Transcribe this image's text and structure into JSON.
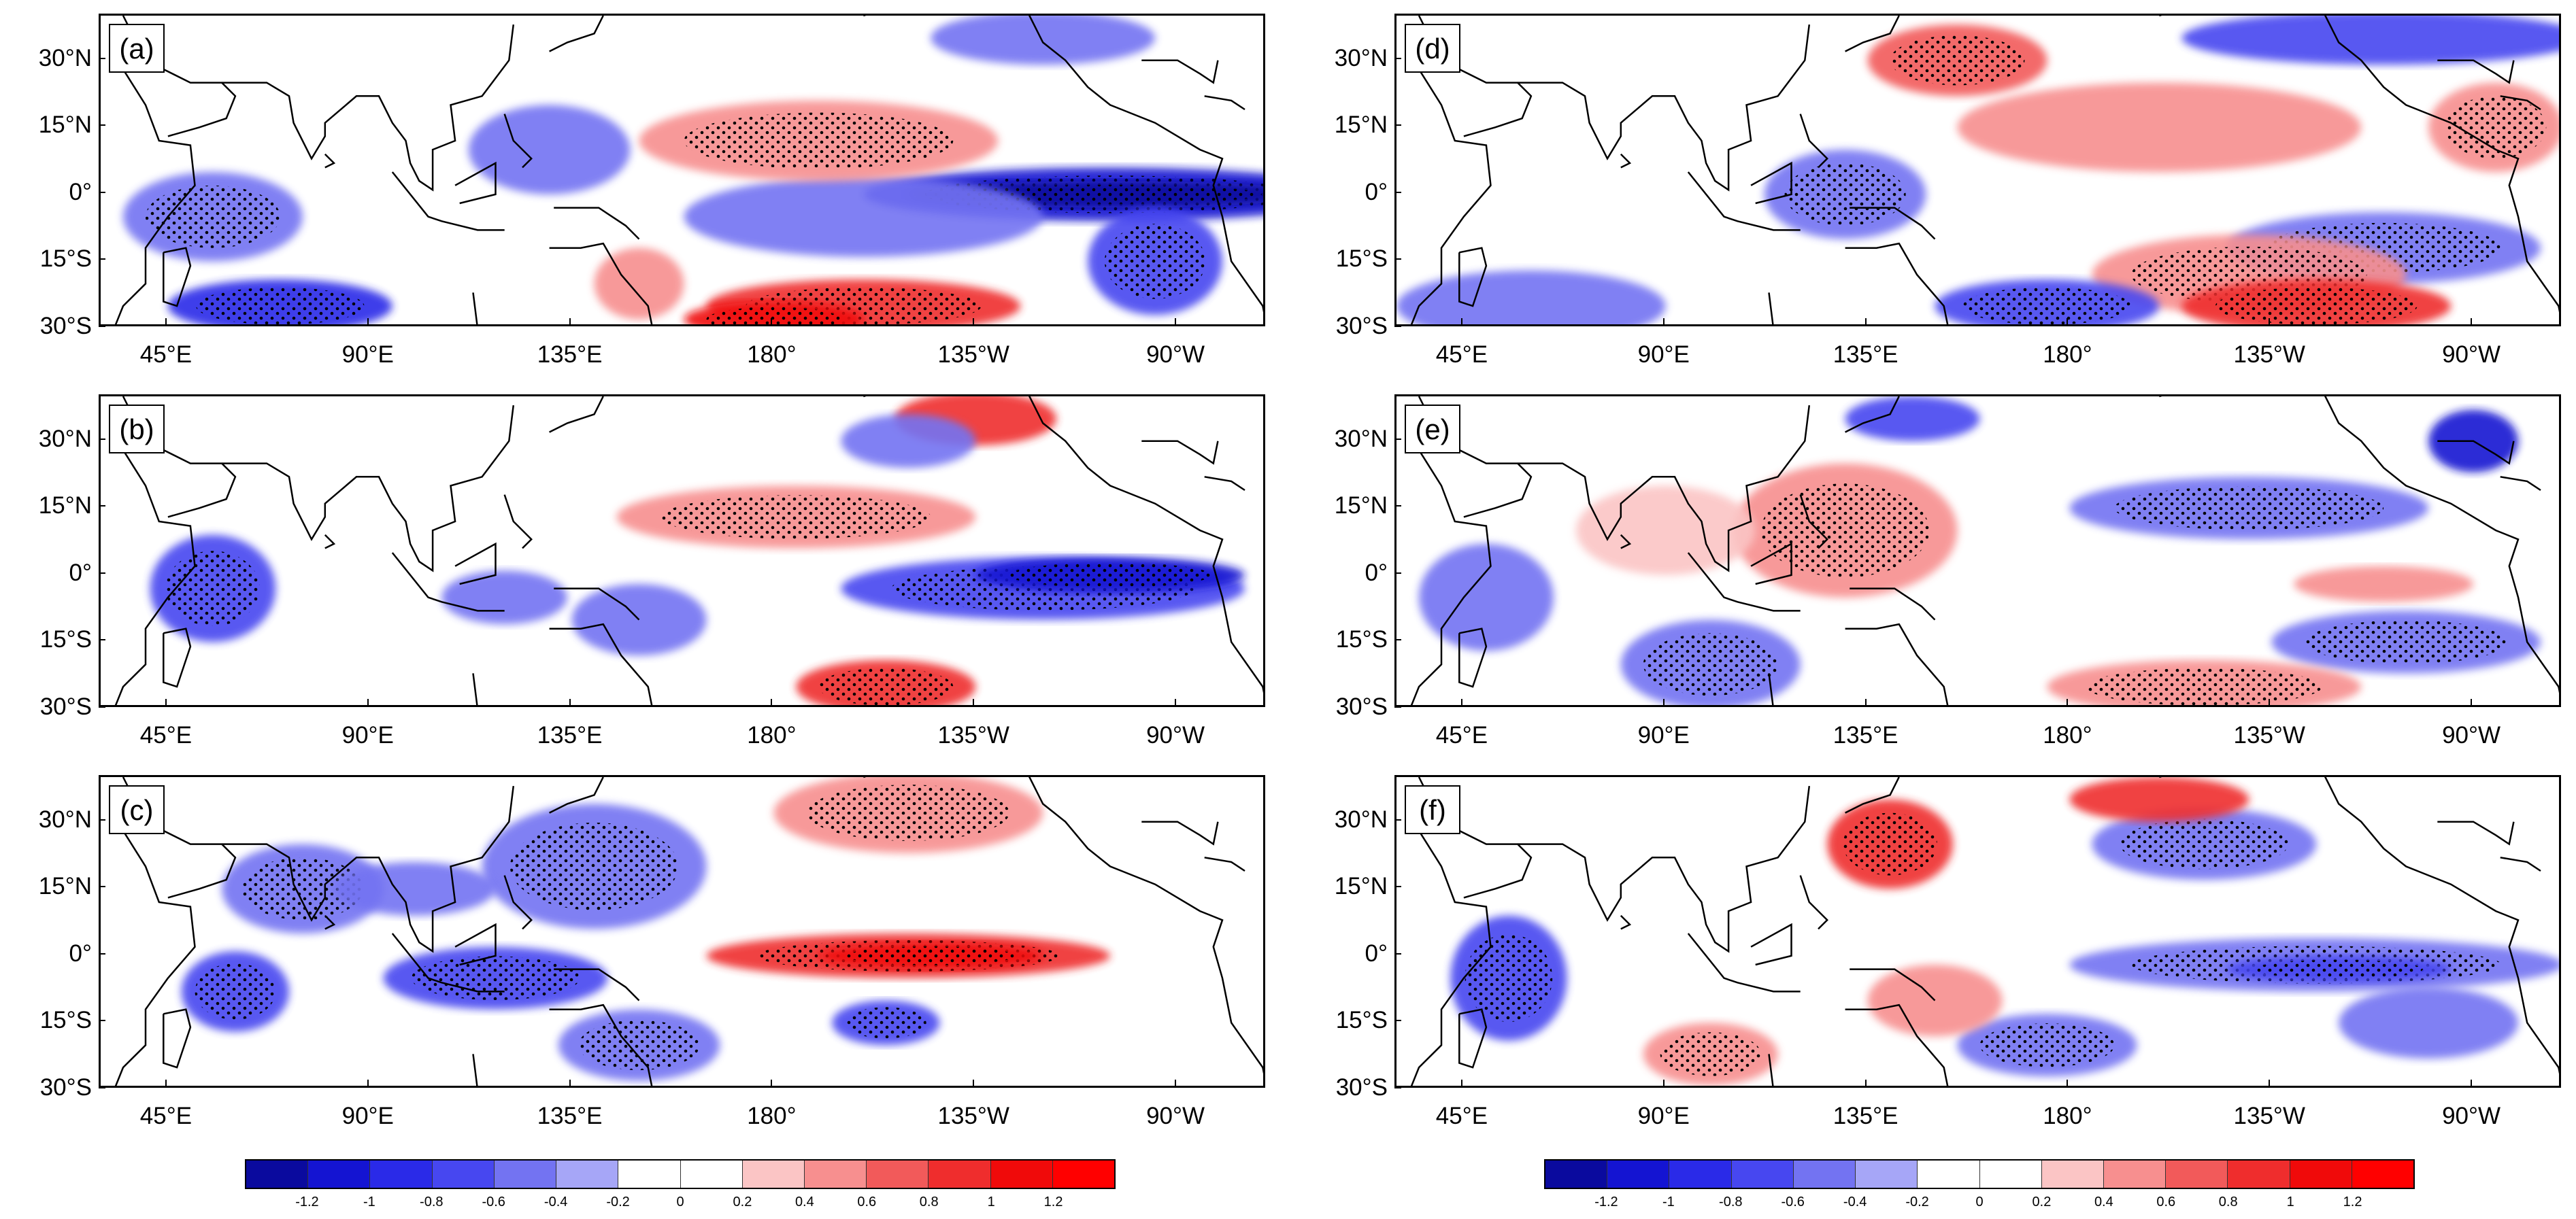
{
  "panels": [
    {
      "id": "a",
      "label": "(a)"
    },
    {
      "id": "b",
      "label": "(b)"
    },
    {
      "id": "c",
      "label": "(c)"
    },
    {
      "id": "d",
      "label": "(d)"
    },
    {
      "id": "e",
      "label": "(e)"
    },
    {
      "id": "f",
      "label": "(f)"
    }
  ],
  "map": {
    "lon_labels": [
      "45°E",
      "90°E",
      "135°E",
      "180°",
      "135°W",
      "90°W"
    ],
    "lon_values": [
      45,
      90,
      135,
      180,
      225,
      270
    ],
    "lat_labels": [
      "30°N",
      "15°N",
      "0°",
      "15°S",
      "30°S"
    ],
    "lat_values": [
      30,
      15,
      0,
      -15,
      -30
    ],
    "lon_range": [
      30,
      290
    ],
    "lat_range": [
      -30,
      40
    ]
  },
  "colorbar": {
    "labels": [
      "-1.2",
      "-1",
      "-0.8",
      "-0.6",
      "-0.4",
      "-0.2",
      "0",
      "0.2",
      "0.4",
      "0.6",
      "0.8",
      "1",
      "1.2"
    ],
    "colors": [
      "#0a0a9e",
      "#1414d2",
      "#2a2ae8",
      "#4747f0",
      "#7373f2",
      "#a6a6f7",
      "#ffffff",
      "#ffffff",
      "#fbc5c5",
      "#f78f8f",
      "#f25a5a",
      "#ef2d2d",
      "#f00a0a",
      "#ff0000"
    ]
  },
  "palette": {
    "land_line": "#000000",
    "stipple": "#000000"
  }
}
